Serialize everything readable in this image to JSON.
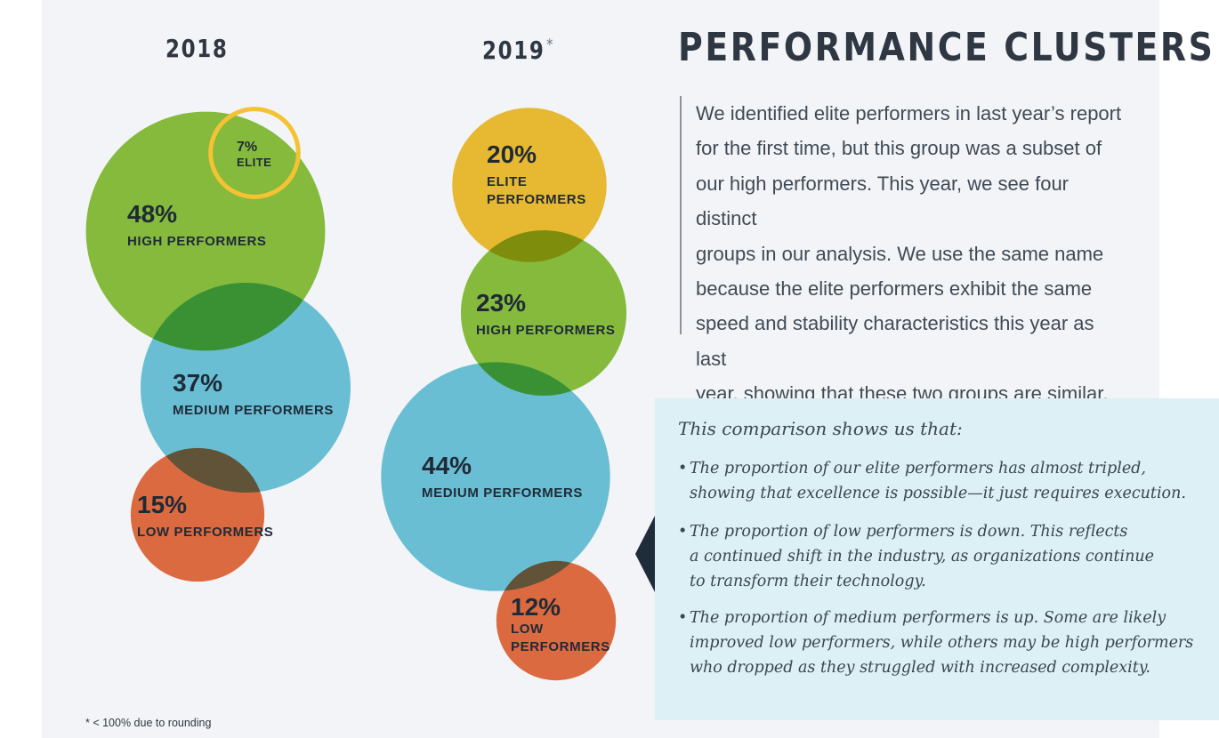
{
  "chart_data": [
    {
      "type": "bubble",
      "title": "2018",
      "series": [
        {
          "pct_label": "48%",
          "name": "HIGH PERFORMERS",
          "value": 48,
          "color": "#8cc33f"
        },
        {
          "pct_label": "37%",
          "name": "MEDIUM PERFORMERS",
          "value": 37,
          "color": "#6fc7da"
        },
        {
          "pct_label": "15%",
          "name": "LOW PERFORMERS",
          "value": 15,
          "color": "#e86f42"
        },
        {
          "pct_label": "7%",
          "name": "ELITE",
          "value": 7,
          "color": "#f4c233"
        }
      ]
    },
    {
      "type": "bubble",
      "title": "2019",
      "title_mark": "*",
      "series": [
        {
          "pct_label": "20%",
          "name": "ELITE PERFORMERS",
          "name_lines": [
            "ELITE",
            "PERFORMERS"
          ],
          "value": 20,
          "color": "#f4c233"
        },
        {
          "pct_label": "23%",
          "name": "HIGH PERFORMERS",
          "value": 23,
          "color": "#8cc33f"
        },
        {
          "pct_label": "44%",
          "name": "MEDIUM PERFORMERS",
          "value": 44,
          "color": "#6fc7da"
        },
        {
          "pct_label": "12%",
          "name": "LOW PERFORMERS",
          "name_lines": [
            "LOW",
            "PERFORMERS"
          ],
          "value": 12,
          "color": "#e86f42"
        }
      ]
    }
  ],
  "title": "PERFORMANCE CLUSTERS",
  "intro_lines": [
    "We identified elite performers in last year’s report",
    "for the first time, but this group was a subset of",
    "our high performers. This year, we see four distinct",
    "groups in our analysis. We use the same name",
    "because the elite performers exhibit the same",
    "speed and stability characteristics this year as last",
    "year, showing that these two groups are similar."
  ],
  "callout": {
    "heading": "This comparison shows us that:",
    "bullet_marker": "•",
    "bullets": [
      [
        "The proportion of our elite performers has almost tripled,",
        "showing that excellence is possible—it just requires execution."
      ],
      [
        "The proportion of low performers is down. This reflects",
        "a continued shift in the industry, as organizations continue",
        "to transform their technology."
      ],
      [
        "The proportion of medium performers is up. Some are likely",
        "improved low performers, while others may be high performers",
        "who dropped as they struggled with increased complexity."
      ]
    ]
  },
  "footnote": "* < 100% due to rounding",
  "colors": {
    "elite": "#f4c233",
    "high": "#8cc33f",
    "medium": "#6fc7da",
    "low": "#e86f42",
    "callout_bg": "#dcf0f5",
    "callout_pointer": "#1f2d3b"
  }
}
